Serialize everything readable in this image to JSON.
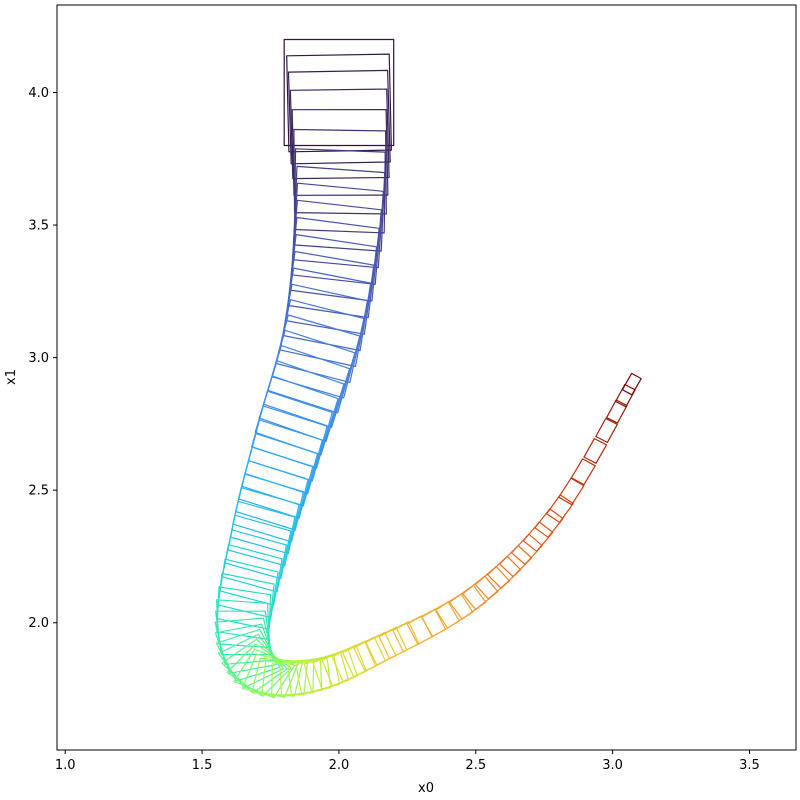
{
  "chart_data": {
    "type": "line",
    "title": "",
    "xlabel": "x0",
    "ylabel": "x1",
    "xlim": [
      0.97,
      3.67
    ],
    "ylim": [
      1.52,
      4.33
    ],
    "xticks": [
      1.0,
      1.5,
      2.0,
      2.5,
      3.0,
      3.5
    ],
    "xtick_labels": [
      "1.0",
      "1.5",
      "2.0",
      "2.5",
      "3.0",
      "3.5"
    ],
    "yticks": [
      2.0,
      2.5,
      3.0,
      3.5,
      4.0
    ],
    "ytick_labels": [
      "2.0",
      "2.5",
      "3.0",
      "3.5",
      "4.0"
    ],
    "grid": false,
    "legend": "none",
    "colormap": "turbo",
    "initial_set": {
      "x0": [
        1.8,
        2.2
      ],
      "x1": [
        3.8,
        4.2
      ]
    },
    "reachable_set_count": 80,
    "center_path": [
      [
        2.0,
        4.0
      ],
      [
        2.0,
        3.55
      ],
      [
        1.94,
        3.1
      ],
      [
        1.82,
        2.7
      ],
      [
        1.72,
        2.35
      ],
      [
        1.65,
        2.0
      ],
      [
        1.71,
        1.82
      ],
      [
        1.9,
        1.8
      ],
      [
        2.15,
        1.9
      ],
      [
        2.5,
        2.1
      ],
      [
        2.8,
        2.42
      ],
      [
        3.07,
        2.9
      ]
    ],
    "initial_width": 0.4,
    "final_width": 0.04,
    "initial_height": 0.4,
    "final_height": 0.07
  }
}
